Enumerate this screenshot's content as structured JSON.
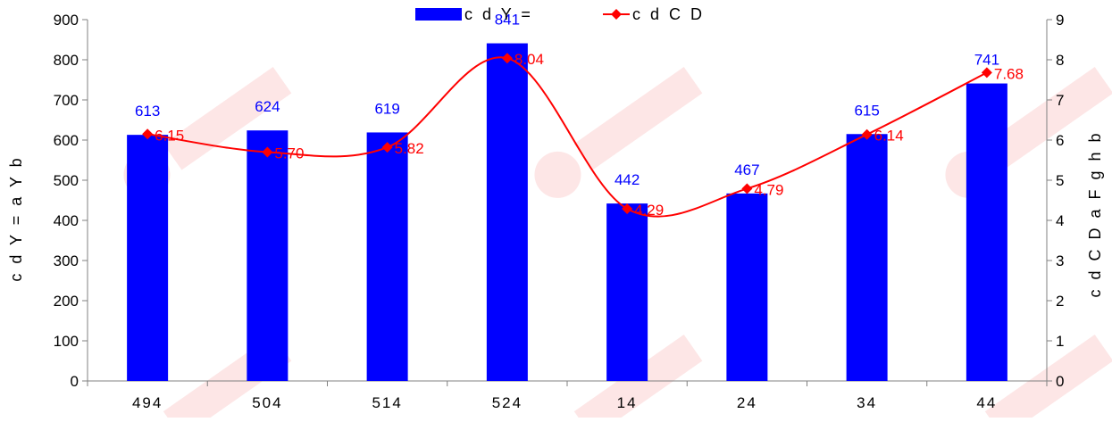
{
  "chart_data": {
    "type": "bar",
    "categories": [
      "494",
      "504",
      "514",
      "524",
      "14",
      "24",
      "34",
      "44"
    ],
    "series": [
      {
        "name": "c d Y =",
        "type": "bar",
        "axis": "left",
        "color": "#0000ff",
        "values": [
          613,
          624,
          619,
          841,
          442,
          467,
          615,
          741
        ],
        "value_labels": [
          "613",
          "624",
          "619",
          "841",
          "442",
          "467",
          "615",
          "741"
        ]
      },
      {
        "name": "c d C D",
        "type": "line",
        "axis": "right",
        "color": "#ff0000",
        "marker": "diamond",
        "smooth": true,
        "values": [
          6.15,
          5.7,
          5.82,
          8.04,
          4.29,
          4.79,
          6.14,
          7.68
        ],
        "value_labels": [
          "6.15",
          "5.70",
          "5.82",
          "8.04",
          "4.29",
          "4.79",
          "6.14",
          "7.68"
        ]
      }
    ],
    "ylabel": "c d Y = a Y b",
    "y2label": "c d C D a F g h b",
    "ylim": [
      0,
      900
    ],
    "y2lim": [
      0,
      9
    ],
    "yticks": [
      "0",
      "100",
      "200",
      "300",
      "400",
      "500",
      "600",
      "700",
      "800",
      "900"
    ],
    "y2ticks": [
      "0",
      "1",
      "2",
      "3",
      "4",
      "5",
      "6",
      "7",
      "8",
      "9"
    ],
    "grid": false,
    "legend_position": "top-center"
  }
}
